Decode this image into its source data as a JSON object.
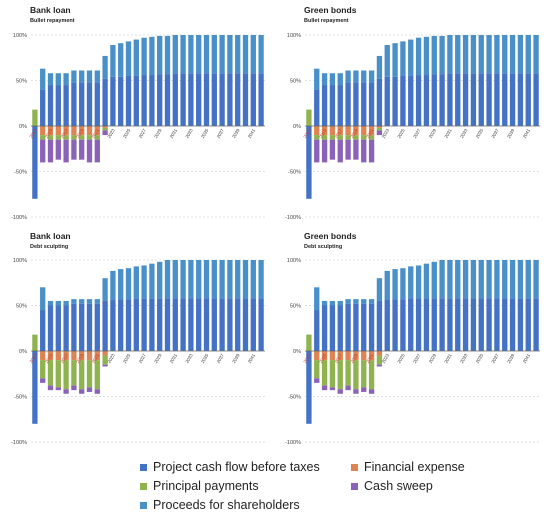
{
  "colors": {
    "project_cash_flow": "#4472C4",
    "financial_expense": "#DD8452",
    "principal_payments": "#8FB34F",
    "cash_sweep": "#8A62B8",
    "proceeds_shareholders": "#4A90C8",
    "grid": "#BFBFBF",
    "zero_line": "#666666",
    "year_label": "#C0392B"
  },
  "legend": {
    "items": [
      {
        "label": "Project cash flow before taxes",
        "color_key": "project_cash_flow"
      },
      {
        "label": "Financial expense",
        "color_key": "financial_expense"
      },
      {
        "label": "Principal payments",
        "color_key": "principal_payments"
      },
      {
        "label": "Cash sweep",
        "color_key": "cash_sweep"
      },
      {
        "label": "Proceeds for shareholders",
        "color_key": "proceeds_shareholders"
      }
    ]
  },
  "chart_data": [
    {
      "type": "bar",
      "title": "Bank loan",
      "subtitle": "Bullet repayment",
      "ylim": [
        -100,
        100
      ],
      "yticks": [
        "100%",
        "50%",
        "0%",
        "-50%",
        "-100%"
      ],
      "categories": [
        "2013",
        "2014",
        "2015",
        "2016",
        "2017",
        "2018",
        "2019",
        "2020",
        "2021",
        "2022",
        "2023",
        "2024",
        "2025",
        "2026",
        "2027",
        "2028",
        "2029",
        "2030",
        "2031",
        "2032",
        "2033",
        "2034",
        "2035",
        "2036",
        "2037",
        "2038",
        "2039",
        "2040",
        "2041",
        "2042"
      ],
      "x_tick_labels": [
        "2013",
        "2015",
        "2017",
        "2019",
        "2021",
        "2023",
        "2025",
        "2027",
        "2029",
        "2031",
        "2033",
        "2035",
        "2037",
        "2039",
        "2041"
      ],
      "series": [
        {
          "key": "project_cash_flow",
          "values": [
            -80,
            40,
            45,
            45,
            45,
            48,
            48,
            48,
            48,
            52,
            54,
            54,
            55,
            55,
            56,
            56,
            57,
            57,
            58,
            58,
            58,
            58,
            58,
            58,
            58,
            58,
            58,
            58,
            58,
            58
          ]
        },
        {
          "key": "financial_expense",
          "values": [
            0,
            -10,
            -10,
            -10,
            -10,
            -10,
            -10,
            -10,
            -10,
            -2,
            0,
            0,
            0,
            0,
            0,
            0,
            0,
            0,
            0,
            0,
            0,
            0,
            0,
            0,
            0,
            0,
            0,
            0,
            0,
            0
          ]
        },
        {
          "key": "principal_payments",
          "values": [
            18,
            -5,
            -5,
            -5,
            -5,
            -5,
            -5,
            -5,
            -5,
            -3,
            0,
            0,
            0,
            0,
            0,
            0,
            0,
            0,
            0,
            0,
            0,
            0,
            0,
            0,
            0,
            0,
            0,
            0,
            0,
            0
          ]
        },
        {
          "key": "cash_sweep",
          "values": [
            0,
            -25,
            -25,
            -22,
            -25,
            -22,
            -22,
            -25,
            -25,
            -5,
            0,
            0,
            0,
            0,
            0,
            0,
            0,
            0,
            0,
            0,
            0,
            0,
            0,
            0,
            0,
            0,
            0,
            0,
            0,
            0
          ]
        },
        {
          "key": "proceeds_shareholders",
          "values": [
            0,
            23,
            13,
            13,
            13,
            13,
            13,
            13,
            13,
            25,
            35,
            37,
            38,
            40,
            41,
            42,
            42,
            42,
            42,
            42,
            42,
            42,
            42,
            42,
            42,
            42,
            42,
            42,
            42,
            42
          ]
        }
      ]
    },
    {
      "type": "bar",
      "title": "Green bonds",
      "subtitle": "Bullet repayment",
      "ylim": [
        -100,
        100
      ],
      "yticks": [
        "100%",
        "50%",
        "0%",
        "-50%",
        "-100%"
      ],
      "categories": [
        "2013",
        "2014",
        "2015",
        "2016",
        "2017",
        "2018",
        "2019",
        "2020",
        "2021",
        "2022",
        "2023",
        "2024",
        "2025",
        "2026",
        "2027",
        "2028",
        "2029",
        "2030",
        "2031",
        "2032",
        "2033",
        "2034",
        "2035",
        "2036",
        "2037",
        "2038",
        "2039",
        "2040",
        "2041",
        "2042"
      ],
      "x_tick_labels": [
        "2013",
        "2015",
        "2017",
        "2019",
        "2021",
        "2023",
        "2025",
        "2027",
        "2029",
        "2031",
        "2033",
        "2035",
        "2037",
        "2039",
        "2041"
      ],
      "series": [
        {
          "key": "project_cash_flow",
          "values": [
            -80,
            40,
            45,
            45,
            45,
            48,
            48,
            48,
            48,
            52,
            54,
            54,
            55,
            55,
            56,
            56,
            57,
            57,
            58,
            58,
            58,
            58,
            58,
            58,
            58,
            58,
            58,
            58,
            58,
            58
          ]
        },
        {
          "key": "financial_expense",
          "values": [
            0,
            -10,
            -10,
            -10,
            -10,
            -10,
            -10,
            -10,
            -10,
            -2,
            0,
            0,
            0,
            0,
            0,
            0,
            0,
            0,
            0,
            0,
            0,
            0,
            0,
            0,
            0,
            0,
            0,
            0,
            0,
            0
          ]
        },
        {
          "key": "principal_payments",
          "values": [
            18,
            -5,
            -5,
            -5,
            -5,
            -5,
            -5,
            -5,
            -5,
            -3,
            0,
            0,
            0,
            0,
            0,
            0,
            0,
            0,
            0,
            0,
            0,
            0,
            0,
            0,
            0,
            0,
            0,
            0,
            0,
            0
          ]
        },
        {
          "key": "cash_sweep",
          "values": [
            0,
            -25,
            -25,
            -22,
            -25,
            -22,
            -22,
            -25,
            -25,
            -5,
            0,
            0,
            0,
            0,
            0,
            0,
            0,
            0,
            0,
            0,
            0,
            0,
            0,
            0,
            0,
            0,
            0,
            0,
            0,
            0
          ]
        },
        {
          "key": "proceeds_shareholders",
          "values": [
            0,
            23,
            13,
            13,
            13,
            13,
            13,
            13,
            13,
            25,
            35,
            37,
            38,
            40,
            41,
            42,
            42,
            42,
            42,
            42,
            42,
            42,
            42,
            42,
            42,
            42,
            42,
            42,
            42,
            42
          ]
        }
      ]
    },
    {
      "type": "bar",
      "title": "Bank loan",
      "subtitle": "Debt sculpting",
      "ylim": [
        -100,
        100
      ],
      "yticks": [
        "100%",
        "50%",
        "0%",
        "-50%",
        "-100%"
      ],
      "categories": [
        "2013",
        "2014",
        "2015",
        "2016",
        "2017",
        "2018",
        "2019",
        "2020",
        "2021",
        "2022",
        "2023",
        "2024",
        "2025",
        "2026",
        "2027",
        "2028",
        "2029",
        "2030",
        "2031",
        "2032",
        "2033",
        "2034",
        "2035",
        "2036",
        "2037",
        "2038",
        "2039",
        "2040",
        "2041",
        "2042"
      ],
      "x_tick_labels": [
        "2013",
        "2015",
        "2017",
        "2019",
        "2021",
        "2023",
        "2025",
        "2027",
        "2029",
        "2031",
        "2033",
        "2035",
        "2037",
        "2039",
        "2041"
      ],
      "series": [
        {
          "key": "project_cash_flow",
          "values": [
            -80,
            45,
            50,
            50,
            50,
            52,
            52,
            52,
            52,
            55,
            56,
            57,
            57,
            58,
            58,
            58,
            58,
            58,
            58,
            58,
            58,
            58,
            58,
            58,
            58,
            58,
            58,
            58,
            58,
            58
          ]
        },
        {
          "key": "financial_expense",
          "values": [
            0,
            -10,
            -10,
            -10,
            -10,
            -10,
            -10,
            -10,
            -10,
            -5,
            0,
            0,
            0,
            0,
            0,
            0,
            0,
            0,
            0,
            0,
            0,
            0,
            0,
            0,
            0,
            0,
            0,
            0,
            0,
            0
          ]
        },
        {
          "key": "principal_payments",
          "values": [
            18,
            -20,
            -28,
            -30,
            -32,
            -28,
            -32,
            -30,
            -32,
            -10,
            0,
            0,
            0,
            0,
            0,
            0,
            0,
            0,
            0,
            0,
            0,
            0,
            0,
            0,
            0,
            0,
            0,
            0,
            0,
            0
          ]
        },
        {
          "key": "cash_sweep",
          "values": [
            0,
            -5,
            -5,
            -3,
            -5,
            -5,
            -5,
            -5,
            -5,
            -2,
            0,
            0,
            0,
            0,
            0,
            0,
            0,
            0,
            0,
            0,
            0,
            0,
            0,
            0,
            0,
            0,
            0,
            0,
            0,
            0
          ]
        },
        {
          "key": "proceeds_shareholders",
          "values": [
            0,
            25,
            5,
            5,
            5,
            5,
            5,
            5,
            5,
            25,
            32,
            33,
            34,
            35,
            36,
            38,
            40,
            42,
            42,
            42,
            42,
            42,
            42,
            42,
            42,
            42,
            42,
            42,
            42,
            42
          ]
        }
      ]
    },
    {
      "type": "bar",
      "title": "Green bonds",
      "subtitle": "Debt sculpting",
      "ylim": [
        -100,
        100
      ],
      "yticks": [
        "100%",
        "50%",
        "0%",
        "-50%",
        "-100%"
      ],
      "categories": [
        "2013",
        "2014",
        "2015",
        "2016",
        "2017",
        "2018",
        "2019",
        "2020",
        "2021",
        "2022",
        "2023",
        "2024",
        "2025",
        "2026",
        "2027",
        "2028",
        "2029",
        "2030",
        "2031",
        "2032",
        "2033",
        "2034",
        "2035",
        "2036",
        "2037",
        "2038",
        "2039",
        "2040",
        "2041",
        "2042"
      ],
      "x_tick_labels": [
        "2013",
        "2015",
        "2017",
        "2019",
        "2021",
        "2023",
        "2025",
        "2027",
        "2029",
        "2031",
        "2033",
        "2035",
        "2037",
        "2039",
        "2041"
      ],
      "series": [
        {
          "key": "project_cash_flow",
          "values": [
            -80,
            45,
            50,
            50,
            50,
            52,
            52,
            52,
            52,
            55,
            56,
            57,
            57,
            58,
            58,
            58,
            58,
            58,
            58,
            58,
            58,
            58,
            58,
            58,
            58,
            58,
            58,
            58,
            58,
            58
          ]
        },
        {
          "key": "financial_expense",
          "values": [
            0,
            -10,
            -10,
            -10,
            -10,
            -10,
            -10,
            -10,
            -10,
            -5,
            0,
            0,
            0,
            0,
            0,
            0,
            0,
            0,
            0,
            0,
            0,
            0,
            0,
            0,
            0,
            0,
            0,
            0,
            0,
            0
          ]
        },
        {
          "key": "principal_payments",
          "values": [
            18,
            -20,
            -28,
            -30,
            -32,
            -28,
            -32,
            -30,
            -32,
            -10,
            0,
            0,
            0,
            0,
            0,
            0,
            0,
            0,
            0,
            0,
            0,
            0,
            0,
            0,
            0,
            0,
            0,
            0,
            0,
            0
          ]
        },
        {
          "key": "cash_sweep",
          "values": [
            0,
            -5,
            -5,
            -3,
            -5,
            -5,
            -5,
            -5,
            -5,
            -2,
            0,
            0,
            0,
            0,
            0,
            0,
            0,
            0,
            0,
            0,
            0,
            0,
            0,
            0,
            0,
            0,
            0,
            0,
            0,
            0
          ]
        },
        {
          "key": "proceeds_shareholders",
          "values": [
            0,
            25,
            5,
            5,
            5,
            5,
            5,
            5,
            5,
            25,
            32,
            33,
            34,
            35,
            36,
            38,
            40,
            42,
            42,
            42,
            42,
            42,
            42,
            42,
            42,
            42,
            42,
            42,
            42,
            42
          ]
        }
      ]
    }
  ]
}
